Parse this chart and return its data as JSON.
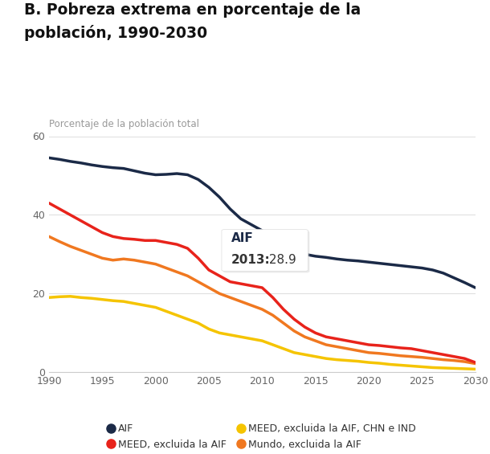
{
  "title_line1": "B. Pobreza extrema en porcentaje de la",
  "title_line2": "población, 1990-2030",
  "ylabel": "Porcentaje de la población total",
  "xlim": [
    1990,
    2030
  ],
  "ylim": [
    0,
    60
  ],
  "yticks": [
    0,
    20,
    40,
    60
  ],
  "xticks": [
    1990,
    1995,
    2000,
    2005,
    2010,
    2015,
    2020,
    2025,
    2030
  ],
  "series": {
    "AIF": {
      "color": "#1b2a47",
      "x": [
        1990,
        1991,
        1992,
        1993,
        1994,
        1995,
        1996,
        1997,
        1998,
        1999,
        2000,
        2001,
        2002,
        2003,
        2004,
        2005,
        2006,
        2007,
        2008,
        2009,
        2010,
        2011,
        2012,
        2013,
        2014,
        2015,
        2016,
        2017,
        2018,
        2019,
        2020,
        2021,
        2022,
        2023,
        2024,
        2025,
        2026,
        2027,
        2028,
        2029,
        2030
      ],
      "y": [
        54.5,
        54.1,
        53.6,
        53.2,
        52.7,
        52.3,
        52.0,
        51.8,
        51.2,
        50.6,
        50.2,
        50.3,
        50.5,
        50.2,
        49.0,
        47.0,
        44.5,
        41.5,
        39.0,
        37.5,
        36.0,
        33.0,
        30.5,
        28.9,
        30.0,
        29.5,
        29.2,
        28.8,
        28.5,
        28.3,
        28.0,
        27.7,
        27.4,
        27.1,
        26.8,
        26.5,
        26.0,
        25.2,
        24.0,
        22.8,
        21.5
      ]
    },
    "MEED_excl_AIF": {
      "color": "#e8231b",
      "x": [
        1990,
        1991,
        1992,
        1993,
        1994,
        1995,
        1996,
        1997,
        1998,
        1999,
        2000,
        2001,
        2002,
        2003,
        2004,
        2005,
        2006,
        2007,
        2008,
        2009,
        2010,
        2011,
        2012,
        2013,
        2014,
        2015,
        2016,
        2017,
        2018,
        2019,
        2020,
        2021,
        2022,
        2023,
        2024,
        2025,
        2026,
        2027,
        2028,
        2029,
        2030
      ],
      "y": [
        43.0,
        41.5,
        40.0,
        38.5,
        37.0,
        35.5,
        34.5,
        34.0,
        33.8,
        33.5,
        33.5,
        33.0,
        32.5,
        31.5,
        29.0,
        26.0,
        24.5,
        23.0,
        22.5,
        22.0,
        21.5,
        19.0,
        16.0,
        13.5,
        11.5,
        10.0,
        9.0,
        8.5,
        8.0,
        7.5,
        7.0,
        6.8,
        6.5,
        6.2,
        6.0,
        5.5,
        5.0,
        4.5,
        4.0,
        3.5,
        2.5
      ]
    },
    "MEED_excl_AIF_CHN_IND": {
      "color": "#f5c400",
      "x": [
        1990,
        1991,
        1992,
        1993,
        1994,
        1995,
        1996,
        1997,
        1998,
        1999,
        2000,
        2001,
        2002,
        2003,
        2004,
        2005,
        2006,
        2007,
        2008,
        2009,
        2010,
        2011,
        2012,
        2013,
        2014,
        2015,
        2016,
        2017,
        2018,
        2019,
        2020,
        2021,
        2022,
        2023,
        2024,
        2025,
        2026,
        2027,
        2028,
        2029,
        2030
      ],
      "y": [
        19.0,
        19.2,
        19.3,
        19.0,
        18.8,
        18.5,
        18.2,
        18.0,
        17.5,
        17.0,
        16.5,
        15.5,
        14.5,
        13.5,
        12.5,
        11.0,
        10.0,
        9.5,
        9.0,
        8.5,
        8.0,
        7.0,
        6.0,
        5.0,
        4.5,
        4.0,
        3.5,
        3.2,
        3.0,
        2.8,
        2.5,
        2.3,
        2.0,
        1.8,
        1.6,
        1.4,
        1.2,
        1.1,
        1.0,
        0.9,
        0.8
      ]
    },
    "Mundo_excl_AIF": {
      "color": "#f07820",
      "x": [
        1990,
        1991,
        1992,
        1993,
        1994,
        1995,
        1996,
        1997,
        1998,
        1999,
        2000,
        2001,
        2002,
        2003,
        2004,
        2005,
        2006,
        2007,
        2008,
        2009,
        2010,
        2011,
        2012,
        2013,
        2014,
        2015,
        2016,
        2017,
        2018,
        2019,
        2020,
        2021,
        2022,
        2023,
        2024,
        2025,
        2026,
        2027,
        2028,
        2029,
        2030
      ],
      "y": [
        34.5,
        33.2,
        32.0,
        31.0,
        30.0,
        29.0,
        28.5,
        28.8,
        28.5,
        28.0,
        27.5,
        26.5,
        25.5,
        24.5,
        23.0,
        21.5,
        20.0,
        19.0,
        18.0,
        17.0,
        16.0,
        14.5,
        12.5,
        10.5,
        9.0,
        8.0,
        7.0,
        6.5,
        6.0,
        5.5,
        5.0,
        4.8,
        4.5,
        4.2,
        4.0,
        3.8,
        3.5,
        3.2,
        3.0,
        2.7,
        2.2
      ]
    }
  },
  "annotation": {
    "x_point": 2013,
    "y_point": 28.9,
    "box_text_line1": "AIF",
    "box_text_line2": "2013:",
    "box_text_value": " 28.9"
  },
  "legend": [
    {
      "label": "AIF",
      "color": "#1b2a47"
    },
    {
      "label": "MEED, excluida la AIF",
      "color": "#e8231b"
    },
    {
      "label": "MEED, excluida la AIF, CHN e IND",
      "color": "#f5c400"
    },
    {
      "label": "Mundo, excluida la AIF",
      "color": "#f07820"
    }
  ],
  "background_color": "#ffffff",
  "linewidth": 2.5
}
